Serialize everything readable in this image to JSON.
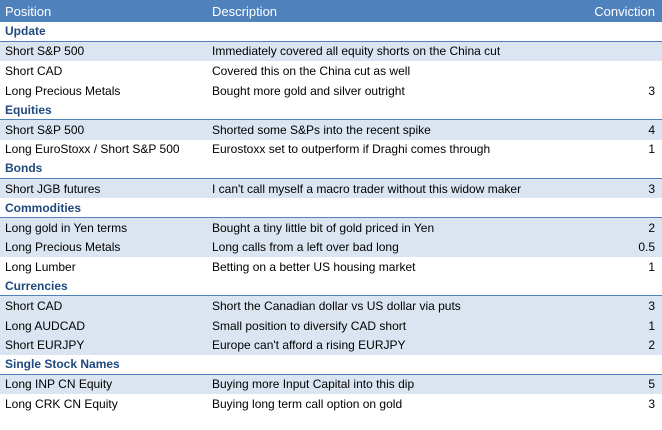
{
  "header": {
    "position": "Position",
    "description": "Description",
    "conviction": "Conviction"
  },
  "sections": [
    {
      "title": "Update",
      "rows": [
        {
          "position": "Short S&P 500",
          "description": "Immediately covered all equity shorts on the China cut",
          "conviction": "",
          "band": true
        },
        {
          "position": "Short CAD",
          "description": "Covered this on the China cut as well",
          "conviction": "",
          "band": false
        },
        {
          "position": "Long Precious Metals",
          "description": "Bought more gold and silver outright",
          "conviction": "3",
          "band": false
        }
      ]
    },
    {
      "title": "Equities",
      "rows": [
        {
          "position": "Short S&P 500",
          "description": "Shorted some S&Ps into the recent spike",
          "conviction": "4",
          "band": true
        },
        {
          "position": "Long EuroStoxx / Short S&P 500",
          "description": "Eurostoxx set to outperform if Draghi comes through",
          "conviction": "1",
          "band": false
        }
      ]
    },
    {
      "title": "Bonds",
      "rows": [
        {
          "position": "Short JGB futures",
          "description": "I can't call myself a macro trader without this widow maker",
          "conviction": "3",
          "band": true
        }
      ]
    },
    {
      "title": "Commodities",
      "rows": [
        {
          "position": "Long gold in Yen terms",
          "description": "Bought a tiny little bit of gold priced in Yen",
          "conviction": "2",
          "band": true
        },
        {
          "position": "Long Precious Metals",
          "description": "Long calls from a left over bad long",
          "conviction": "0.5",
          "band": true
        },
        {
          "position": "Long Lumber",
          "description": "Betting on a better US housing market",
          "conviction": "1",
          "band": false
        }
      ]
    },
    {
      "title": "Currencies",
      "rows": [
        {
          "position": "Short CAD",
          "description": "Short the Canadian dollar vs US dollar via puts",
          "conviction": "3",
          "band": true
        },
        {
          "position": "Long AUDCAD",
          "description": "Small position to diversify CAD short",
          "conviction": "1",
          "band": true
        },
        {
          "position": "Short EURJPY",
          "description": "Europe can't afford a rising EURJPY",
          "conviction": "2",
          "band": true
        }
      ]
    },
    {
      "title": "Single Stock Names",
      "rows": [
        {
          "position": "Long INP CN Equity",
          "description": "Buying more Input Capital into this dip",
          "conviction": "5",
          "band": true
        },
        {
          "position": "Long CRK CN Equity",
          "description": "Buying long term call option on gold",
          "conviction": "3",
          "band": false
        }
      ]
    }
  ]
}
